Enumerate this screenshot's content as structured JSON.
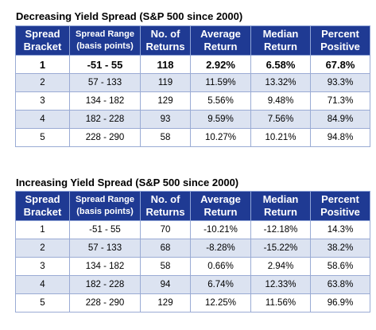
{
  "tables": [
    {
      "title": "Decreasing Yield Spread (S&P 500 since 2000)",
      "headers": [
        [
          "Spread",
          "Bracket"
        ],
        [
          "Spread Range",
          "(basis points)"
        ],
        [
          "No. of",
          "Returns"
        ],
        [
          "Average",
          "Return"
        ],
        [
          "Median",
          "Return"
        ],
        [
          "Percent",
          "Positive"
        ]
      ],
      "rows": [
        [
          "1",
          "-51 - 55",
          "118",
          "2.92%",
          "6.58%",
          "67.8%"
        ],
        [
          "2",
          "57 - 133",
          "119",
          "11.59%",
          "13.32%",
          "93.3%"
        ],
        [
          "3",
          "134 - 182",
          "129",
          "5.56%",
          "9.48%",
          "71.3%"
        ],
        [
          "4",
          "182 - 228",
          "93",
          "9.59%",
          "7.56%",
          "84.9%"
        ],
        [
          "5",
          "228 - 290",
          "58",
          "10.27%",
          "10.21%",
          "94.8%"
        ]
      ]
    },
    {
      "title": "Increasing Yield Spread (S&P 500 since 2000)",
      "headers": [
        [
          "Spread",
          "Bracket"
        ],
        [
          "Spread Range",
          "(basis points)"
        ],
        [
          "No. of",
          "Returns"
        ],
        [
          "Average",
          "Return"
        ],
        [
          "Median",
          "Return"
        ],
        [
          "Percent",
          "Positive"
        ]
      ],
      "rows": [
        [
          "1",
          "-51 - 55",
          "70",
          "-10.21%",
          "-12.18%",
          "14.3%"
        ],
        [
          "2",
          "57 - 133",
          "68",
          "-8.28%",
          "-15.22%",
          "38.2%"
        ],
        [
          "3",
          "134 - 182",
          "58",
          "0.66%",
          "2.94%",
          "58.6%"
        ],
        [
          "4",
          "182 - 228",
          "94",
          "6.74%",
          "12.33%",
          "63.8%"
        ],
        [
          "5",
          "228 - 290",
          "129",
          "12.25%",
          "11.56%",
          "96.9%"
        ]
      ]
    }
  ],
  "colors": {
    "header_bg": "#1f3a93",
    "header_text": "#ffffff",
    "shaded_row": "#dce3f1",
    "border": "#9aabd4"
  }
}
